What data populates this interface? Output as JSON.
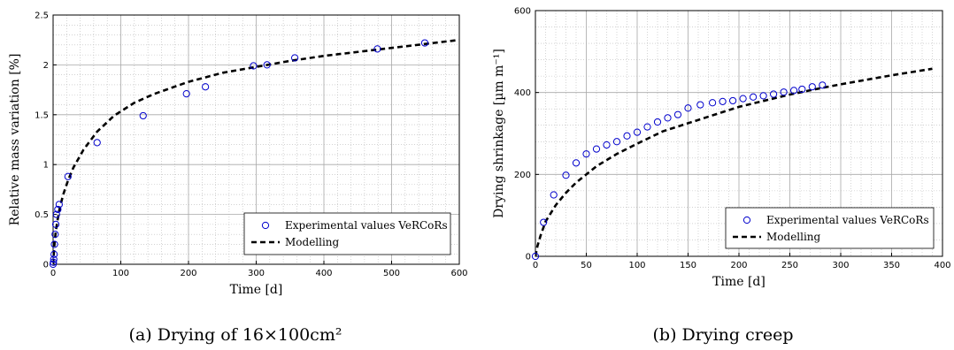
{
  "captions": [
    "(a) Drying of 16×100cm²",
    "(b) Drying creep"
  ],
  "chart_data": [
    {
      "type": "scatter",
      "xlabel": "Time [d]",
      "ylabel": "Relative mass variation [%]",
      "xlim": [
        0,
        600
      ],
      "ylim": [
        0,
        2.5
      ],
      "xticks": [
        "0",
        "100",
        "200",
        "300",
        "400",
        "500",
        "600"
      ],
      "yticks": [
        "0",
        "0.5",
        "1",
        "1.5",
        "2",
        "2.5"
      ],
      "grid": true,
      "legend_position": "bottom-right",
      "series": [
        {
          "name": "Experimental values VeRCoRs",
          "marker": "circle",
          "color": "#0000cc",
          "x": [
            0,
            0.5,
            1,
            1.5,
            2,
            3,
            4,
            5,
            7,
            9,
            22,
            65,
            133,
            197,
            225,
            296,
            316,
            357,
            479,
            549
          ],
          "y": [
            0,
            0.02,
            0.05,
            0.1,
            0.2,
            0.3,
            0.4,
            0.5,
            0.55,
            0.6,
            0.88,
            1.22,
            1.49,
            1.71,
            1.78,
            1.99,
            2.0,
            2.07,
            2.16,
            2.22
          ]
        },
        {
          "name": "Modelling",
          "style": "dashed",
          "color": "#000000",
          "x": [
            0,
            1,
            2,
            4,
            6,
            10,
            15,
            22,
            30,
            45,
            65,
            90,
            120,
            150,
            200,
            250,
            300,
            350,
            400,
            450,
            500,
            550,
            600
          ],
          "y": [
            0,
            0.1,
            0.2,
            0.33,
            0.42,
            0.57,
            0.7,
            0.84,
            0.97,
            1.15,
            1.33,
            1.49,
            1.62,
            1.71,
            1.83,
            1.92,
            1.98,
            2.04,
            2.09,
            2.13,
            2.17,
            2.21,
            2.25
          ]
        }
      ]
    },
    {
      "type": "scatter",
      "xlabel": "Time [d]",
      "ylabel": "Drying shrinkage [µm m⁻¹]",
      "xlim": [
        0,
        400
      ],
      "ylim": [
        0,
        600
      ],
      "xticks": [
        "0",
        "50",
        "100",
        "150",
        "200",
        "250",
        "300",
        "350",
        "400"
      ],
      "yticks": [
        "0",
        "200",
        "400",
        "600"
      ],
      "grid": true,
      "legend_position": "bottom-right",
      "series": [
        {
          "name": "Experimental values VeRCoRs",
          "marker": "circle",
          "color": "#0000cc",
          "x": [
            0,
            8,
            18,
            30,
            40,
            50,
            60,
            70,
            80,
            90,
            100,
            110,
            120,
            130,
            140,
            150,
            162,
            174,
            184,
            194,
            204,
            214,
            224,
            234,
            244,
            254,
            262,
            272,
            282
          ],
          "y": [
            0,
            83,
            150,
            198,
            228,
            250,
            262,
            272,
            280,
            294,
            303,
            316,
            328,
            338,
            346,
            362,
            370,
            375,
            378,
            380,
            385,
            389,
            392,
            396,
            401,
            405,
            408,
            414,
            418
          ]
        },
        {
          "name": "Modelling",
          "style": "dashed",
          "color": "#000000",
          "x": [
            0,
            2,
            5,
            10,
            20,
            30,
            40,
            50,
            60,
            80,
            100,
            125,
            150,
            175,
            200,
            225,
            250,
            275,
            300,
            325,
            350,
            375,
            390
          ],
          "y": [
            0,
            25,
            50,
            85,
            125,
            155,
            180,
            200,
            220,
            250,
            275,
            305,
            325,
            345,
            365,
            380,
            395,
            408,
            420,
            431,
            442,
            452,
            458
          ]
        }
      ]
    }
  ]
}
